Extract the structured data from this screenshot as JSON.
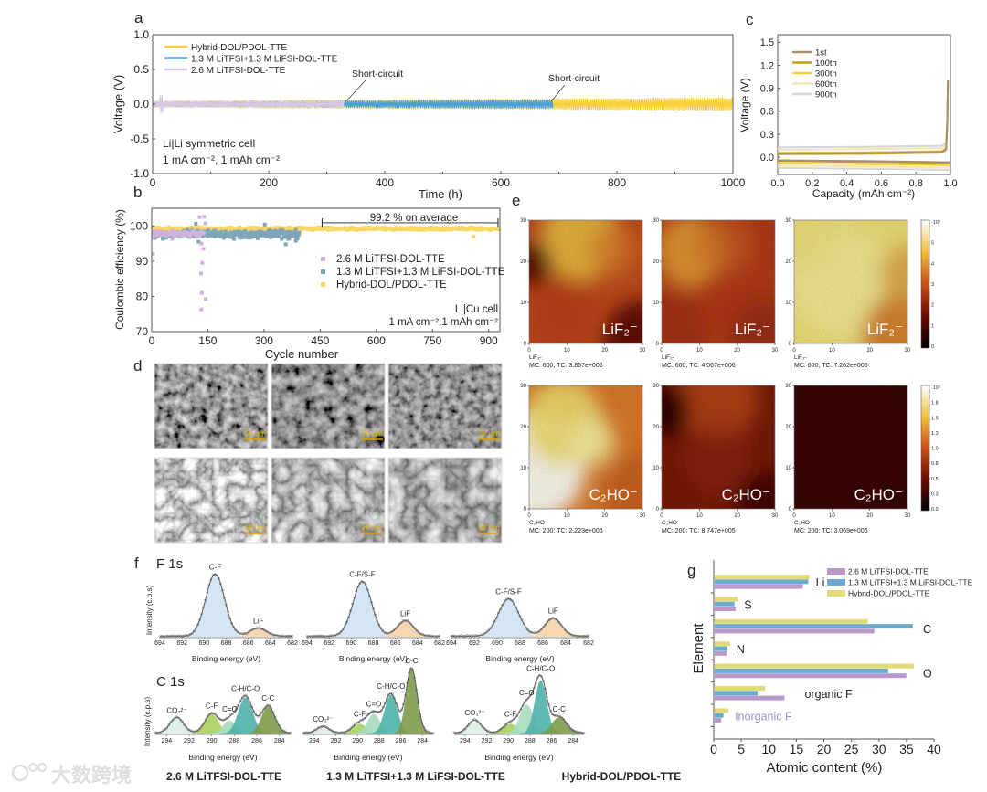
{
  "figure": {
    "panel_labels": [
      "a",
      "b",
      "c",
      "d",
      "e",
      "f",
      "g"
    ],
    "samples": [
      "2.6 M LiTFSI-DOL-TTE",
      "1.3 M LiTFSI+1.3 M LiFSI-DOL-TTE",
      "Hybrid-DOL/PDOL-TTE"
    ],
    "watermark": "大数跨境"
  },
  "chart_data": [
    {
      "panel": "a",
      "type": "line",
      "title": "",
      "xlabel": "Time (h)",
      "ylabel": "Voltage (V)",
      "xlim": [
        0,
        1000
      ],
      "ylim": [
        -1,
        1
      ],
      "xticks": [
        0,
        200,
        400,
        600,
        800,
        1000
      ],
      "yticks": [
        -1.0,
        -0.5,
        0.0,
        0.5,
        1.0
      ],
      "legend": "top-left",
      "series": [
        {
          "name": "Hybrid-DOL/PDOL-TTE",
          "color": "#f7cf3c",
          "end_h": 1000,
          "amplitude_start": 0.05,
          "amplitude_end": 0.1
        },
        {
          "name": "1.3 M LiTFSI+1.3 M LiFSI-DOL-TTE",
          "color": "#4a9fd6",
          "end_h": 690,
          "amplitude_start": 0.04,
          "amplitude_end": 0.07
        },
        {
          "name": "2.6 M LiTFSI-DOL-TTE",
          "color": "#d9c6e2",
          "end_h": 330,
          "amplitude_start": 0.05,
          "amplitude_end": 0.05
        }
      ],
      "annotations": [
        {
          "text": "Short-circuit",
          "x": 330,
          "y": 0.0
        },
        {
          "text": "Short-circuit",
          "x": 690,
          "y": 0.0
        }
      ],
      "notes": [
        "Li|Li symmetric cell",
        "1 mA cm⁻², 1 mAh cm⁻²"
      ]
    },
    {
      "panel": "b",
      "type": "scatter",
      "title": "",
      "xlabel": "Cycle number",
      "ylabel": "Coulombic efficiency (%)",
      "xlim": [
        0,
        930
      ],
      "ylim": [
        70,
        105
      ],
      "xticks": [
        0,
        150,
        300,
        450,
        600,
        750,
        900
      ],
      "yticks": [
        70,
        80,
        90,
        100
      ],
      "legend": "center-right",
      "series": [
        {
          "name": "2.6 M LiTFSI-DOL-TTE",
          "color": "#cdb3d9",
          "cycles": [
            1,
            140
          ],
          "mean": 97.8,
          "spread": 1.0,
          "outliers": [
            [
              3,
              92
            ],
            [
              55,
              96.3
            ],
            [
              128,
              102.5
            ],
            [
              140,
              102.6
            ],
            [
              133,
              95
            ],
            [
              138,
              93.5
            ],
            [
              135,
              89.5
            ],
            [
              132,
              86.5
            ],
            [
              134,
              81
            ],
            [
              144,
              79.2
            ],
            [
              133,
              76.3
            ],
            [
              143,
              100.7
            ]
          ]
        },
        {
          "name": "1.3 M LiTFSI+1.3 M LiFSI-DOL-TTE",
          "color": "#7fa6b8",
          "cycles": [
            1,
            395
          ],
          "mean": 97.6,
          "spread": 1.4,
          "outliers": [
            [
              118,
              100.6
            ],
            [
              302,
              100.4
            ],
            [
              358,
              94.8
            ],
            [
              385,
              95.8
            ],
            [
              125,
              95.5
            ]
          ]
        },
        {
          "name": "Hybrid-DOL/PDOL-TTE",
          "color": "#f8d66a",
          "cycles": [
            1,
            930
          ],
          "mean": 99.2,
          "spread": 0.45,
          "outliers": [
            [
              860,
              97.0
            ]
          ]
        }
      ],
      "annotation": {
        "text": "99.2 % on average",
        "x_from": 455,
        "x_to": 925,
        "y": 98.8
      },
      "notes": [
        "Li|Cu cell",
        "1 mA cm⁻²,1 mAh cm⁻²"
      ]
    },
    {
      "panel": "c",
      "type": "line",
      "title": "",
      "xlabel": "Capacity (mAh cm⁻²)",
      "ylabel": "Voltage (V)",
      "xlim": [
        0,
        1.0
      ],
      "ylim": [
        -0.225,
        1.6
      ],
      "xticks": [
        0.0,
        0.2,
        0.4,
        0.6,
        0.8,
        1.0
      ],
      "yticks": [
        0.0,
        0.3,
        0.6,
        0.9,
        1.2,
        1.5
      ],
      "legend": "top-left",
      "series": [
        {
          "name": "1st",
          "color": "#a89068",
          "charge_v": 0.05,
          "discharge_v": -0.04
        },
        {
          "name": "100th",
          "color": "#c9a010",
          "charge_v": 0.04,
          "discharge_v": -0.05
        },
        {
          "name": "300th",
          "color": "#f5d040",
          "charge_v": 0.06,
          "discharge_v": -0.08
        },
        {
          "name": "600th",
          "color": "#f1e4b5",
          "charge_v": 0.1,
          "discharge_v": -0.11
        },
        {
          "name": "900th",
          "color": "#d6d6d6",
          "charge_v": 0.13,
          "discharge_v": -0.14
        }
      ]
    },
    {
      "panel": "d",
      "type": "image-grid",
      "images": [
        {
          "sample": 0,
          "scale": "50 μm"
        },
        {
          "sample": 1,
          "scale": "50 μm"
        },
        {
          "sample": 2,
          "scale": "50 μm"
        },
        {
          "sample": 0,
          "scale": "10 μm"
        },
        {
          "sample": 1,
          "scale": "10 μm"
        },
        {
          "sample": 2,
          "scale": "10 μm"
        }
      ]
    },
    {
      "panel": "e",
      "type": "heatmap",
      "axis_ticks": [
        0,
        10,
        20,
        30
      ],
      "rows": [
        {
          "ion": "LiF₂⁻",
          "caption_ion": "LiF₂-",
          "colorbar_ticks": [
            "·10²",
            "5",
            "4",
            "3",
            "2",
            "1",
            "0"
          ],
          "maps": [
            {
              "sample": 0,
              "caption": "MC:   600; TC: 3.867e+006"
            },
            {
              "sample": 1,
              "caption": "MC:   600; TC: 4.067e+006"
            },
            {
              "sample": 2,
              "caption": "MC:   600; TC: 7.262e+006"
            }
          ]
        },
        {
          "ion": "C₂HO⁻",
          "caption_ion": "C₂HO-",
          "colorbar_ticks": [
            "·10²",
            "1.8",
            "1.5",
            "1.3",
            "1.0",
            "0.8",
            "0.5",
            "0.3",
            "0.0"
          ],
          "maps": [
            {
              "sample": 0,
              "caption": "MC:   200; TC: 2.223e+006"
            },
            {
              "sample": 1,
              "caption": "MC:   200; TC: 8.747e+005"
            },
            {
              "sample": 2,
              "caption": "MC:   200; TC: 3.069e+005"
            }
          ]
        }
      ]
    },
    {
      "panel": "f",
      "type": "line",
      "ylabel": "Intensity (c.p.s)",
      "xlabel": "Binding energy (eV)",
      "regions": [
        {
          "name": "F 1s",
          "xlim": [
            694,
            682
          ],
          "xticks": [
            694,
            692,
            690,
            688,
            686,
            684,
            682
          ],
          "spectra": [
            {
              "sample": 0,
              "peaks": [
                {
                  "label": "C-F",
                  "center": 689.0,
                  "height": 1.0,
                  "fwhm": 2.0,
                  "color": "#cfe2f3"
                },
                {
                  "label": "LiF",
                  "center": 685.1,
                  "height": 0.13,
                  "fwhm": 1.7,
                  "color": "#f6d2ac"
                }
              ]
            },
            {
              "sample": 1,
              "peaks": [
                {
                  "label": "C-F/S-F",
                  "center": 689.0,
                  "height": 0.88,
                  "fwhm": 2.0,
                  "color": "#cfe2f3"
                },
                {
                  "label": "LiF",
                  "center": 685.1,
                  "height": 0.25,
                  "fwhm": 1.7,
                  "color": "#f6d2ac"
                }
              ]
            },
            {
              "sample": 2,
              "peaks": [
                {
                  "label": "C-F/S-F",
                  "center": 689.0,
                  "height": 0.6,
                  "fwhm": 2.1,
                  "color": "#cfe2f3"
                },
                {
                  "label": "LiF",
                  "center": 685.1,
                  "height": 0.29,
                  "fwhm": 1.7,
                  "color": "#f6d2ac"
                }
              ]
            }
          ]
        },
        {
          "name": "C 1s",
          "xlim": [
            295,
            283
          ],
          "xticks": [
            294,
            292,
            290,
            288,
            286,
            284
          ],
          "spectra": [
            {
              "sample": 0,
              "peaks": [
                {
                  "label": "CO₃²⁻",
                  "center": 293.1,
                  "height": 0.24,
                  "fwhm": 1.4,
                  "color": "#dcefe3"
                },
                {
                  "label": "C-F",
                  "center": 290.0,
                  "height": 0.3,
                  "fwhm": 1.4,
                  "color": "#a9d05c"
                },
                {
                  "label": "C=O",
                  "center": 288.4,
                  "height": 0.2,
                  "fwhm": 1.4,
                  "color": "#a7dcc0"
                },
                {
                  "label": "C-H/C-O",
                  "center": 287.0,
                  "height": 0.56,
                  "fwhm": 1.5,
                  "color": "#4fb2a9"
                },
                {
                  "label": "C-C",
                  "center": 285.0,
                  "height": 0.42,
                  "fwhm": 1.4,
                  "color": "#7d9c4a"
                }
              ]
            },
            {
              "sample": 1,
              "peaks": [
                {
                  "label": "CO₃²⁻",
                  "center": 293.2,
                  "height": 0.1,
                  "fwhm": 1.3,
                  "color": "#dcefe3"
                },
                {
                  "label": "C-F",
                  "center": 289.8,
                  "height": 0.15,
                  "fwhm": 1.5,
                  "color": "#a9d05c"
                },
                {
                  "label": "C=O",
                  "center": 288.5,
                  "height": 0.3,
                  "fwhm": 1.4,
                  "color": "#a7dcc0"
                },
                {
                  "label": "C-H/C-O",
                  "center": 286.9,
                  "height": 0.6,
                  "fwhm": 1.4,
                  "color": "#4fb2a9"
                },
                {
                  "label": "C-C",
                  "center": 285.0,
                  "height": 1.0,
                  "fwhm": 1.2,
                  "color": "#7d9c4a"
                }
              ]
            },
            {
              "sample": 2,
              "peaks": [
                {
                  "label": "CO₃²⁻",
                  "center": 293.1,
                  "height": 0.2,
                  "fwhm": 1.4,
                  "color": "#dcefe3"
                },
                {
                  "label": "C-F",
                  "center": 289.8,
                  "height": 0.15,
                  "fwhm": 1.5,
                  "color": "#a9d05c"
                },
                {
                  "label": "C=O",
                  "center": 288.3,
                  "height": 0.45,
                  "fwhm": 1.5,
                  "color": "#a7dcc0"
                },
                {
                  "label": "C-H/C-O",
                  "center": 287.0,
                  "height": 0.82,
                  "fwhm": 1.3,
                  "color": "#4fb2a9"
                },
                {
                  "label": "C-C",
                  "center": 285.3,
                  "height": 0.25,
                  "fwhm": 1.6,
                  "color": "#7d9c4a"
                }
              ]
            }
          ]
        }
      ]
    },
    {
      "panel": "g",
      "type": "bar",
      "orientation": "horizontal",
      "xlabel": "Atomic content (%)",
      "ylabel": "Element",
      "xlim": [
        0,
        40
      ],
      "xticks": [
        0,
        5,
        10,
        15,
        20,
        25,
        30,
        35,
        40
      ],
      "legend": "top-right",
      "categories": [
        "Li",
        "S",
        "C",
        "N",
        "O",
        "organic F",
        "Inorganic F"
      ],
      "category_label_color": {
        "Inorganic F": "#9c92c6"
      },
      "series": [
        {
          "name": "2.6 M LiTFSI-DOL-TTE",
          "color": "#b79acb",
          "values": [
            16.0,
            3.8,
            29.0,
            2.2,
            34.8,
            12.7,
            1.2
          ]
        },
        {
          "name": "1.3 M LiTFSI+1.3 M LiFSI-DOL-TTE",
          "color": "#69acd0",
          "values": [
            17.0,
            3.6,
            36.0,
            2.3,
            31.5,
            7.8,
            1.6
          ]
        },
        {
          "name": "Hybrid-DOL/PDOL-TTE",
          "color": "#e1db76",
          "values": [
            17.2,
            4.2,
            27.8,
            2.8,
            36.2,
            9.2,
            2.5
          ]
        }
      ]
    }
  ]
}
